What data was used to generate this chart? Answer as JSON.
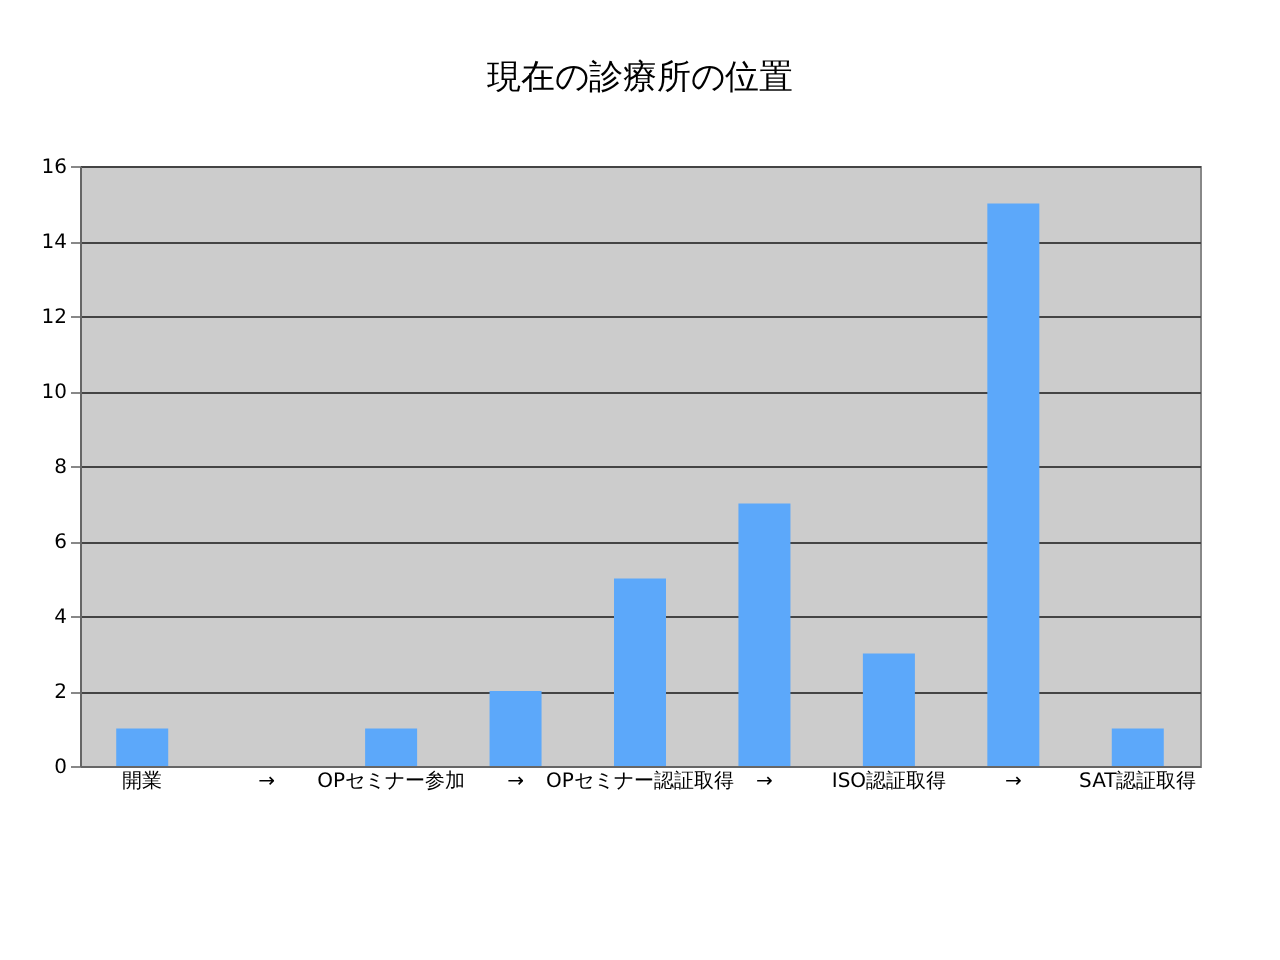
{
  "chart_data": {
    "type": "bar",
    "title": "現在の診療所の位置",
    "categories": [
      "開業",
      "→",
      "OPセミナー参加",
      "→",
      "OPセミナー認証取得",
      "→",
      "ISO認証取得",
      "→",
      "SAT認証取得"
    ],
    "values": [
      1,
      0,
      1,
      2,
      5,
      7,
      3,
      15,
      1
    ],
    "color": "#5ca8fa",
    "ylim": [
      0,
      16
    ],
    "yticks": [
      0,
      2,
      4,
      6,
      8,
      10,
      12,
      14,
      16
    ],
    "grid": true
  }
}
